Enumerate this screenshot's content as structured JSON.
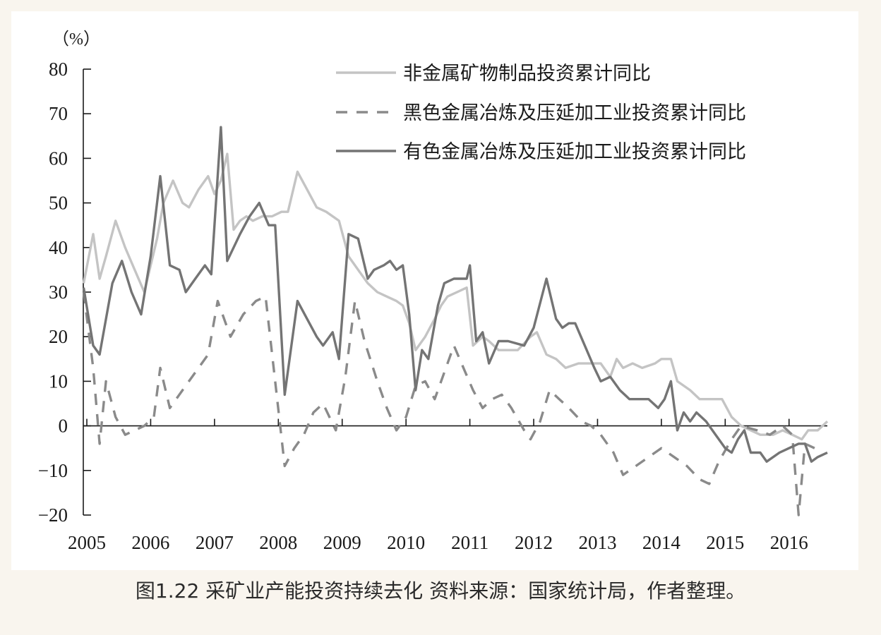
{
  "caption": "图1.22 采矿业产能投资持续去化   资料来源：国家统计局，作者整理。",
  "chart_data": {
    "type": "line",
    "ylabel": "（%）",
    "ylim": [
      -20,
      80
    ],
    "yticks": [
      80,
      70,
      60,
      50,
      40,
      30,
      20,
      10,
      0,
      -10,
      -20
    ],
    "xlim": [
      2005.0,
      2016.6
    ],
    "xticks": [
      2005,
      2006,
      2007,
      2008,
      2009,
      2010,
      2011,
      2012,
      2013,
      2014,
      2015,
      2016
    ],
    "grid": false,
    "legend": "top-right",
    "series": [
      {
        "name": "非金属矿物制品投资累计同比",
        "style": "solid",
        "color": "#c4c4c4",
        "points": [
          [
            2004.95,
            32
          ],
          [
            2005.1,
            43
          ],
          [
            2005.2,
            33
          ],
          [
            2005.3,
            38
          ],
          [
            2005.45,
            46
          ],
          [
            2005.6,
            40
          ],
          [
            2005.75,
            35
          ],
          [
            2005.9,
            30
          ],
          [
            2006.1,
            42
          ],
          [
            2006.2,
            50
          ],
          [
            2006.35,
            55
          ],
          [
            2006.5,
            50
          ],
          [
            2006.6,
            49
          ],
          [
            2006.75,
            53
          ],
          [
            2006.9,
            56
          ],
          [
            2007.0,
            52
          ],
          [
            2007.1,
            55
          ],
          [
            2007.2,
            61
          ],
          [
            2007.3,
            44
          ],
          [
            2007.4,
            46
          ],
          [
            2007.5,
            47
          ],
          [
            2007.6,
            46
          ],
          [
            2007.75,
            47
          ],
          [
            2007.9,
            47
          ],
          [
            2008.05,
            48
          ],
          [
            2008.15,
            48
          ],
          [
            2008.3,
            57
          ],
          [
            2008.45,
            53
          ],
          [
            2008.6,
            49
          ],
          [
            2008.75,
            48
          ],
          [
            2008.95,
            46
          ],
          [
            2009.1,
            38
          ],
          [
            2009.25,
            35
          ],
          [
            2009.4,
            32
          ],
          [
            2009.55,
            30
          ],
          [
            2009.7,
            29
          ],
          [
            2009.85,
            28
          ],
          [
            2009.95,
            27
          ],
          [
            2010.05,
            23
          ],
          [
            2010.15,
            17
          ],
          [
            2010.3,
            20
          ],
          [
            2010.45,
            24
          ],
          [
            2010.55,
            27
          ],
          [
            2010.65,
            29
          ],
          [
            2010.8,
            30
          ],
          [
            2010.95,
            31
          ],
          [
            2011.05,
            18
          ],
          [
            2011.2,
            20
          ],
          [
            2011.3,
            19
          ],
          [
            2011.45,
            17
          ],
          [
            2011.6,
            17
          ],
          [
            2011.75,
            17
          ],
          [
            2011.95,
            20
          ],
          [
            2012.05,
            21
          ],
          [
            2012.2,
            16
          ],
          [
            2012.35,
            15
          ],
          [
            2012.5,
            13
          ],
          [
            2012.7,
            14
          ],
          [
            2012.9,
            14
          ],
          [
            2013.05,
            14
          ],
          [
            2013.2,
            11
          ],
          [
            2013.3,
            15
          ],
          [
            2013.4,
            13
          ],
          [
            2013.55,
            14
          ],
          [
            2013.7,
            13
          ],
          [
            2013.9,
            14
          ],
          [
            2014.0,
            15
          ],
          [
            2014.15,
            15
          ],
          [
            2014.25,
            10
          ],
          [
            2014.45,
            8
          ],
          [
            2014.6,
            6
          ],
          [
            2014.8,
            6
          ],
          [
            2014.95,
            6
          ],
          [
            2015.1,
            2
          ],
          [
            2015.25,
            0
          ],
          [
            2015.4,
            -1
          ],
          [
            2015.55,
            -2
          ],
          [
            2015.75,
            -2
          ],
          [
            2015.9,
            -1
          ],
          [
            2016.05,
            -2
          ],
          [
            2016.2,
            -3
          ],
          [
            2016.3,
            -1
          ],
          [
            2016.45,
            -1
          ],
          [
            2016.6,
            1
          ]
        ]
      },
      {
        "name": "黑色金属冶炼及压延加工业投资累计同比",
        "style": "dashed",
        "color": "#8a8a8a",
        "points": [
          [
            2004.95,
            30
          ],
          [
            2005.1,
            13
          ],
          [
            2005.2,
            -4
          ],
          [
            2005.3,
            10
          ],
          [
            2005.45,
            2
          ],
          [
            2005.6,
            -2
          ],
          [
            2005.75,
            -1
          ],
          [
            2005.9,
            0
          ],
          [
            2006.05,
            2
          ],
          [
            2006.15,
            13
          ],
          [
            2006.3,
            4
          ],
          [
            2006.5,
            8
          ],
          [
            2006.7,
            12
          ],
          [
            2006.9,
            16
          ],
          [
            2007.05,
            28
          ],
          [
            2007.25,
            20
          ],
          [
            2007.45,
            25
          ],
          [
            2007.65,
            28
          ],
          [
            2007.8,
            29
          ],
          [
            2007.95,
            10
          ],
          [
            2008.1,
            -9
          ],
          [
            2008.25,
            -5
          ],
          [
            2008.4,
            -2
          ],
          [
            2008.55,
            3
          ],
          [
            2008.7,
            5
          ],
          [
            2008.9,
            -1
          ],
          [
            2009.05,
            11
          ],
          [
            2009.2,
            28
          ],
          [
            2009.35,
            19
          ],
          [
            2009.55,
            10
          ],
          [
            2009.7,
            4
          ],
          [
            2009.85,
            -1
          ],
          [
            2010.0,
            2
          ],
          [
            2010.15,
            9
          ],
          [
            2010.3,
            10
          ],
          [
            2010.45,
            6
          ],
          [
            2010.6,
            12
          ],
          [
            2010.75,
            18
          ],
          [
            2010.9,
            13
          ],
          [
            2011.05,
            8
          ],
          [
            2011.2,
            4
          ],
          [
            2011.35,
            6
          ],
          [
            2011.5,
            7
          ],
          [
            2011.65,
            4
          ],
          [
            2011.85,
            -1
          ],
          [
            2011.95,
            -3
          ],
          [
            2012.1,
            1
          ],
          [
            2012.25,
            8
          ],
          [
            2012.4,
            6
          ],
          [
            2012.55,
            4
          ],
          [
            2012.75,
            1
          ],
          [
            2012.9,
            0
          ],
          [
            2013.05,
            -2
          ],
          [
            2013.25,
            -6
          ],
          [
            2013.4,
            -11
          ],
          [
            2013.6,
            -9
          ],
          [
            2013.8,
            -7
          ],
          [
            2014.0,
            -5
          ],
          [
            2014.2,
            -7
          ],
          [
            2014.4,
            -9
          ],
          [
            2014.6,
            -12
          ],
          [
            2014.75,
            -13
          ],
          [
            2014.9,
            -8
          ],
          [
            2015.1,
            -3
          ],
          [
            2015.25,
            0
          ],
          [
            2015.5,
            -1
          ],
          [
            2015.7,
            -2
          ],
          [
            2015.9,
            0
          ],
          [
            2016.05,
            -2
          ],
          [
            2016.15,
            -20
          ],
          [
            2016.25,
            -4
          ],
          [
            2016.4,
            -5
          ]
        ]
      },
      {
        "name": "有色金属冶炼及压延加工业投资累计同比",
        "style": "solid",
        "color": "#747474",
        "points": [
          [
            2004.95,
            31
          ],
          [
            2005.1,
            18
          ],
          [
            2005.2,
            16
          ],
          [
            2005.4,
            32
          ],
          [
            2005.55,
            37
          ],
          [
            2005.7,
            30
          ],
          [
            2005.85,
            25
          ],
          [
            2006.0,
            38
          ],
          [
            2006.15,
            56
          ],
          [
            2006.3,
            36
          ],
          [
            2006.45,
            35
          ],
          [
            2006.55,
            30
          ],
          [
            2006.7,
            33
          ],
          [
            2006.85,
            36
          ],
          [
            2006.95,
            34
          ],
          [
            2007.1,
            67
          ],
          [
            2007.2,
            37
          ],
          [
            2007.4,
            43
          ],
          [
            2007.55,
            47
          ],
          [
            2007.7,
            50
          ],
          [
            2007.85,
            45
          ],
          [
            2007.95,
            45
          ],
          [
            2008.1,
            7
          ],
          [
            2008.3,
            28
          ],
          [
            2008.45,
            24
          ],
          [
            2008.6,
            20
          ],
          [
            2008.7,
            18
          ],
          [
            2008.85,
            21
          ],
          [
            2008.95,
            15
          ],
          [
            2009.1,
            43
          ],
          [
            2009.25,
            42
          ],
          [
            2009.4,
            33
          ],
          [
            2009.5,
            35
          ],
          [
            2009.65,
            36
          ],
          [
            2009.75,
            37
          ],
          [
            2009.85,
            35
          ],
          [
            2009.95,
            36
          ],
          [
            2010.05,
            25
          ],
          [
            2010.15,
            8
          ],
          [
            2010.25,
            17
          ],
          [
            2010.35,
            15
          ],
          [
            2010.5,
            27
          ],
          [
            2010.6,
            32
          ],
          [
            2010.75,
            33
          ],
          [
            2010.95,
            33
          ],
          [
            2011.0,
            36
          ],
          [
            2011.1,
            19
          ],
          [
            2011.2,
            21
          ],
          [
            2011.3,
            14
          ],
          [
            2011.45,
            19
          ],
          [
            2011.6,
            19
          ],
          [
            2011.85,
            18
          ],
          [
            2012.0,
            22
          ],
          [
            2012.2,
            33
          ],
          [
            2012.35,
            24
          ],
          [
            2012.45,
            22
          ],
          [
            2012.55,
            23
          ],
          [
            2012.65,
            23
          ],
          [
            2012.8,
            18
          ],
          [
            2012.95,
            13
          ],
          [
            2013.05,
            10
          ],
          [
            2013.2,
            11
          ],
          [
            2013.35,
            8
          ],
          [
            2013.5,
            6
          ],
          [
            2013.6,
            6
          ],
          [
            2013.8,
            6
          ],
          [
            2013.95,
            4
          ],
          [
            2014.05,
            6
          ],
          [
            2014.15,
            10
          ],
          [
            2014.25,
            -1
          ],
          [
            2014.35,
            3
          ],
          [
            2014.45,
            1
          ],
          [
            2014.55,
            3
          ],
          [
            2014.7,
            1
          ],
          [
            2014.85,
            -2
          ],
          [
            2015.0,
            -5
          ],
          [
            2015.1,
            -6
          ],
          [
            2015.2,
            -3
          ],
          [
            2015.3,
            -1
          ],
          [
            2015.4,
            -6
          ],
          [
            2015.55,
            -6
          ],
          [
            2015.65,
            -8
          ],
          [
            2015.85,
            -6
          ],
          [
            2016.0,
            -5
          ],
          [
            2016.15,
            -4
          ],
          [
            2016.25,
            -4
          ],
          [
            2016.35,
            -8
          ],
          [
            2016.45,
            -7
          ],
          [
            2016.6,
            -6
          ]
        ]
      }
    ]
  }
}
